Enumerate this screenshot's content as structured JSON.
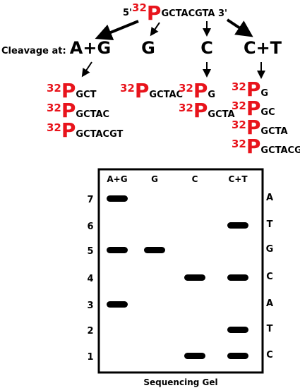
{
  "top": {
    "prime5": "5'",
    "isotope": "32",
    "element": "P",
    "sequence": "GCTACGTA 3'"
  },
  "cleavage_label": "Cleavage at:",
  "columns": [
    {
      "label": "A+G",
      "fragments": [
        {
          "isotope": "32",
          "element": "P",
          "seq": "GCT"
        },
        {
          "isotope": "32",
          "element": "P",
          "seq": "GCTAC"
        },
        {
          "isotope": "32",
          "element": "P",
          "seq": "GCTACGT"
        }
      ]
    },
    {
      "label": "G",
      "fragments": [
        {
          "isotope": "32",
          "element": "P",
          "seq": "GCTAC"
        }
      ]
    },
    {
      "label": "C",
      "fragments": [
        {
          "isotope": "32",
          "element": "P",
          "seq": "G"
        },
        {
          "isotope": "32",
          "element": "P",
          "seq": "GCTA"
        }
      ]
    },
    {
      "label": "C+T",
      "fragments": [
        {
          "isotope": "32",
          "element": "P",
          "seq": "G"
        },
        {
          "isotope": "32",
          "element": "P",
          "seq": "GC"
        },
        {
          "isotope": "32",
          "element": "P",
          "seq": "GCTA"
        },
        {
          "isotope": "32",
          "element": "P",
          "seq": "GCTACG"
        }
      ]
    }
  ],
  "gel": {
    "title": "Sequencing Gel",
    "lanes": [
      {
        "label": "A+G",
        "bands": [
          7,
          5,
          3
        ]
      },
      {
        "label": "G",
        "bands": [
          5
        ]
      },
      {
        "label": "C",
        "bands": [
          4,
          1
        ]
      },
      {
        "label": "C+T",
        "bands": [
          6,
          4,
          2,
          1
        ]
      }
    ],
    "rows": [
      {
        "number": 7,
        "base": "A"
      },
      {
        "number": 6,
        "base": "T"
      },
      {
        "number": 5,
        "base": "G"
      },
      {
        "number": 4,
        "base": "C"
      },
      {
        "number": 3,
        "base": "A"
      },
      {
        "number": 2,
        "base": "T"
      },
      {
        "number": 1,
        "base": "C"
      }
    ]
  }
}
